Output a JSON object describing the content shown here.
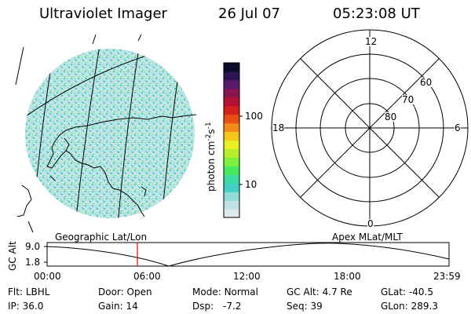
{
  "header": {
    "title": "Ultraviolet Imager",
    "date": "26 Jul 07",
    "time": "05:23:08 UT"
  },
  "colorbar": {
    "label": "photon cm",
    "exp1": "-2",
    "s": "s",
    "exp2": "-1",
    "ticks": [
      "100",
      "10"
    ],
    "colors": [
      "#dde9ec",
      "#bfe2e6",
      "#8fdcd5",
      "#44cfc6",
      "#3ddba0",
      "#45ea5e",
      "#7cf23f",
      "#b5ef2c",
      "#e9f021",
      "#f6c61c",
      "#f48b18",
      "#e85013",
      "#d6201c",
      "#b31133",
      "#8a1450",
      "#5a1c6a",
      "#2e1452",
      "#0b0a2a"
    ]
  },
  "polar": {
    "mlt_labels": [
      "12",
      "18",
      "6",
      "0"
    ],
    "lat_labels": [
      "60",
      "70",
      "80"
    ]
  },
  "timeline": {
    "left_label": "Geographic Lat/Lon",
    "right_label": "Apex  MLat/MLT",
    "axis_label": "GC Alt",
    "y_ticks": [
      "9.0",
      "1.8"
    ],
    "x_ticks": [
      "00:00",
      "06:00",
      "12:00",
      "18:00",
      "23:59"
    ],
    "marker_hour": 5.39
  },
  "status": {
    "filter_key": "Flt:",
    "filter_val": "LBHL",
    "door_key": "Door:",
    "door_val": "Open",
    "mode_key": "Mode:",
    "mode_val": "Normal",
    "gcalt_key": "GC Alt:",
    "gcalt_val": "4.7 Re",
    "glat_key": "GLat:",
    "glat_val": "-40.5",
    "ip_key": "IP:",
    "ip_val": "36.0",
    "gain_key": "Gain:",
    "gain_val": "14",
    "dsp_key": "Dsp:",
    "dsp_val": "-7.2",
    "seq_key": "Seq:",
    "seq_val": "39",
    "glon_key": "GLon:",
    "glon_val": "289.3"
  }
}
